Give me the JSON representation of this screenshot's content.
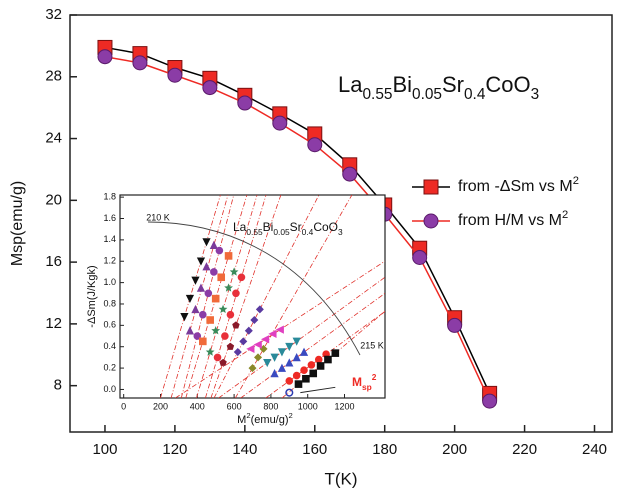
{
  "chart_data": [
    {
      "type": "line",
      "annotation": [
        {
          "text": "La"
        },
        {
          "text": "0.55",
          "sub": true
        },
        {
          "text": "Bi"
        },
        {
          "text": "0.05",
          "sub": true
        },
        {
          "text": "Sr"
        },
        {
          "text": "0.4",
          "sub": true
        },
        {
          "text": "CoO"
        },
        {
          "text": "3",
          "sub": true
        }
      ],
      "x_label": "T(K)",
      "y_label": "Msp(emu/g)",
      "xlim": [
        90,
        245
      ],
      "xticks": [
        100,
        120,
        140,
        160,
        180,
        200,
        220,
        240
      ],
      "ylim": [
        5,
        32
      ],
      "yticks": [
        8,
        12,
        16,
        20,
        24,
        28,
        32
      ],
      "series": [
        {
          "name": [
            {
              "text": "from -ΔSm vs M"
            },
            {
              "text": "2",
              "sup": true
            }
          ],
          "marker": "square",
          "color": "#ee2a24",
          "line_color": "#000000",
          "x": [
            100,
            110,
            120,
            130,
            140,
            150,
            160,
            170,
            180,
            190,
            200,
            210
          ],
          "values": [
            29.9,
            29.5,
            28.6,
            27.9,
            26.8,
            25.6,
            24.3,
            22.3,
            19.7,
            16.9,
            12.4,
            7.5
          ]
        },
        {
          "name": [
            {
              "text": "from H/M vs M"
            },
            {
              "text": "2",
              "sup": true
            }
          ],
          "marker": "circle",
          "color": "#8b3ca6",
          "line_color": "#ee2a24",
          "x": [
            100,
            110,
            120,
            130,
            140,
            150,
            160,
            170,
            180,
            190,
            200,
            210
          ],
          "values": [
            29.3,
            28.9,
            28.1,
            27.3,
            26.3,
            25.0,
            23.6,
            21.7,
            19.1,
            16.3,
            11.9,
            7.0
          ]
        }
      ]
    },
    {
      "type": "scatter",
      "annotation": [
        {
          "text": "La"
        },
        {
          "text": "0.55",
          "sub": true
        },
        {
          "text": "Bi"
        },
        {
          "text": "0.05",
          "sub": true
        },
        {
          "text": "Sr"
        },
        {
          "text": "0.4",
          "sub": true
        },
        {
          "text": "CoO"
        },
        {
          "text": "3",
          "sub": true
        }
      ],
      "label_high": "210 K",
      "label_low": "215 K",
      "msp_label": [
        {
          "text": "M"
        },
        {
          "text": "sp",
          "sub": true
        },
        {
          "text": "2",
          "sup": true
        }
      ],
      "x_label": [
        {
          "text": "M"
        },
        {
          "text": "2",
          "sup": true
        },
        {
          "text": "(emu/g)"
        },
        {
          "text": "2",
          "sup": true
        }
      ],
      "y_label": "-ΔSm(J/Kgk)",
      "xlim": [
        -20,
        1420
      ],
      "xticks": [
        0,
        200,
        400,
        600,
        800,
        1000,
        1200
      ],
      "ylim": [
        -0.08,
        1.82
      ],
      "yticks": [
        {
          "value": 0,
          "label": "0.0"
        },
        0.2,
        0.4,
        0.6,
        0.8,
        {
          "value": 1,
          "label": "1.0"
        },
        1.2,
        1.4,
        1.6,
        1.8
      ],
      "series": [
        {
          "marker": "tri-down",
          "color": "#111111",
          "x": [
            330,
            360,
            390,
            420,
            450
          ],
          "values": [
            0.68,
            0.85,
            1.02,
            1.2,
            1.38
          ]
        },
        {
          "marker": "tri-up",
          "color": "#7a3a9a",
          "x": [
            360,
            390,
            420,
            450,
            490
          ],
          "values": [
            0.55,
            0.75,
            0.95,
            1.15,
            1.35
          ]
        },
        {
          "marker": "circle",
          "color": "#8b3ca6",
          "x": [
            400,
            430,
            460,
            490,
            520
          ],
          "values": [
            0.5,
            0.7,
            0.9,
            1.1,
            1.3
          ]
        },
        {
          "marker": "square",
          "color": "#f06a3a",
          "x": [
            430,
            470,
            500,
            530,
            570
          ],
          "values": [
            0.45,
            0.65,
            0.85,
            1.05,
            1.25
          ]
        },
        {
          "marker": "star",
          "color": "#3a8a5a",
          "x": [
            470,
            500,
            540,
            570,
            600
          ],
          "values": [
            0.35,
            0.55,
            0.75,
            0.95,
            1.1
          ]
        },
        {
          "marker": "circle",
          "color": "#e8303a",
          "x": [
            510,
            550,
            580,
            610,
            640
          ],
          "values": [
            0.3,
            0.5,
            0.7,
            0.9,
            1.05
          ]
        },
        {
          "marker": "pentagon",
          "color": "#8a1a2a",
          "x": [
            540,
            580,
            610
          ],
          "values": [
            0.25,
            0.4,
            0.6
          ]
        },
        {
          "marker": "diamond",
          "color": "#5a3aa0",
          "x": [
            620,
            650,
            680,
            710,
            740
          ],
          "values": [
            0.35,
            0.45,
            0.55,
            0.65,
            0.75
          ]
        },
        {
          "marker": "diamond",
          "color": "#8a8a2a",
          "x": [
            700,
            730,
            760
          ],
          "values": [
            0.2,
            0.3,
            0.38
          ]
        },
        {
          "marker": "tri-left",
          "color": "#e040c0",
          "x": [
            690,
            730,
            770,
            810,
            850
          ],
          "values": [
            0.38,
            0.42,
            0.47,
            0.52,
            0.56
          ]
        },
        {
          "marker": "tri-down",
          "color": "#2a8a9a",
          "x": [
            780,
            820,
            860,
            900,
            940
          ],
          "values": [
            0.25,
            0.3,
            0.35,
            0.4,
            0.45
          ]
        },
        {
          "marker": "tri-up",
          "color": "#3a4ac0",
          "x": [
            820,
            860,
            900,
            940,
            980
          ],
          "values": [
            0.15,
            0.2,
            0.25,
            0.3,
            0.35
          ]
        },
        {
          "marker": "circle",
          "color": "#ee2a24",
          "x": [
            900,
            940,
            980,
            1020,
            1060,
            1100
          ],
          "values": [
            0.08,
            0.13,
            0.18,
            0.23,
            0.28,
            0.33
          ]
        },
        {
          "marker": "square",
          "color": "#111111",
          "x": [
            950,
            990,
            1030,
            1070,
            1110,
            1150
          ],
          "values": [
            0.05,
            0.1,
            0.15,
            0.22,
            0.28,
            0.34
          ]
        },
        {
          "marker": "open-circle",
          "color": "#2a3ab0",
          "x": [
            900
          ],
          "values": [
            -0.03
          ]
        }
      ]
    }
  ]
}
